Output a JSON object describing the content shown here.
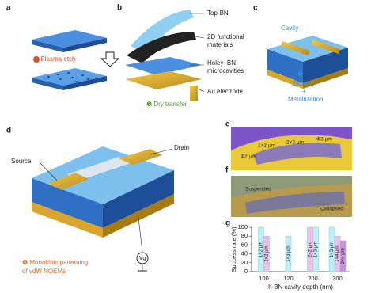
{
  "panels": {
    "a": {
      "label": "a",
      "step": "❶ Plasma etch"
    },
    "b": {
      "label": "b",
      "layers": [
        "Top-BN",
        "2D functional",
        "materials",
        "Holey–BN",
        "microcavities",
        "Au electrode"
      ],
      "step": "❷ Dry transfer"
    },
    "c": {
      "label": "c",
      "cavity": "Cavity",
      "step": [
        "❸",
        "Etching",
        "+",
        "Metallization"
      ]
    },
    "d": {
      "label": "d",
      "source": "Source",
      "drain": "Drain",
      "gate": "Vg",
      "step": [
        "❹ Monolithic patterning",
        "of vdW NOEMs"
      ]
    },
    "e": {
      "label": "e",
      "texts": [
        "1×2 μm",
        "2×2 μm",
        "Φ3 μm",
        "Φ2 μm"
      ]
    },
    "f": {
      "label": "f",
      "texts": [
        "Suspended",
        "Collapsed"
      ]
    },
    "g": {
      "label": "g"
    }
  },
  "chart_data": {
    "type": "bar",
    "x_label": "h-BN cavity depth (nm)",
    "y_label": "Success rate (%)",
    "categories": [
      "100",
      "120",
      "200",
      "300"
    ],
    "series": [
      {
        "name": "1×2 μm",
        "color": "#bfeef7",
        "values": [
          100,
          null,
          null,
          null
        ]
      },
      {
        "name": "2×2 μm",
        "color": "#f4bde9",
        "values": [
          80,
          null,
          100,
          null
        ]
      },
      {
        "name": "1×3 μm",
        "color": "#bfeef7",
        "values": [
          null,
          80,
          100,
          100
        ]
      },
      {
        "name": "1×4 μm",
        "color": "#f4bde9",
        "values": [
          null,
          null,
          null,
          80
        ]
      },
      {
        "name": "2×4 μm",
        "color": "#c98fdc",
        "values": [
          null,
          null,
          null,
          70
        ]
      }
    ],
    "ylim": [
      0,
      100
    ],
    "yticks": [
      0,
      20,
      40,
      60,
      80,
      100
    ]
  }
}
